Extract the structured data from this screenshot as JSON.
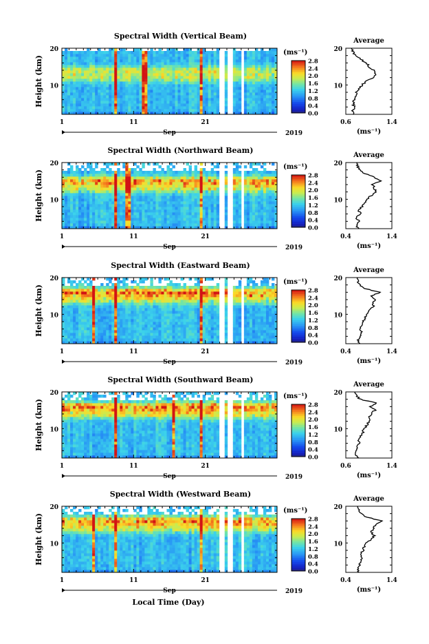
{
  "figure": {
    "xlabel": "Local Time (Day)",
    "month_label": "Sep",
    "year_label": "2019",
    "x_ticks": [
      "1",
      "11",
      "21"
    ],
    "colorbar_unit": "(ms⁻¹)",
    "colorbar_ticks": [
      "0.0",
      "0.4",
      "0.8",
      "1.2",
      "1.6",
      "2.0",
      "2.4",
      "2.8"
    ],
    "ylabel": "Height (km)",
    "y_ticks": [
      "10",
      "20"
    ],
    "avg_title": "Average",
    "avg_unit": "(ms⁻¹)"
  },
  "chart_data": [
    {
      "type": "heatmap",
      "title": "Spectral Width (Vertical Beam)",
      "ylabel": "Height (km)",
      "xlabel": "",
      "xlim": [
        1,
        31
      ],
      "ylim": [
        2,
        20
      ],
      "clim": [
        0.0,
        2.8
      ],
      "noise_top_km": 19.5,
      "bands": [
        {
          "h": 14,
          "v": 1.7
        },
        {
          "h": 12,
          "v": 1.6
        }
      ],
      "bright_days": [
        8.5,
        20.3,
        12.5
      ],
      "gaps": [
        23.3,
        24.4,
        26.2
      ],
      "profile": {
        "title": "Average",
        "xlabel": "(ms⁻¹)",
        "xlim": [
          0.6,
          1.4
        ],
        "xticks": [
          "0.6",
          "1.4"
        ],
        "heights": [
          2,
          3,
          4,
          5,
          6,
          7,
          8,
          9,
          10,
          11,
          12,
          13,
          14,
          15,
          16,
          17,
          18,
          19,
          20
        ],
        "values": [
          0.72,
          0.72,
          0.74,
          0.73,
          0.75,
          0.76,
          0.78,
          0.82,
          0.88,
          0.95,
          1.06,
          1.12,
          1.08,
          1.0,
          0.95,
          0.85,
          0.76,
          0.72,
          0.7
        ]
      }
    },
    {
      "type": "heatmap",
      "title": "Spectral Width (Northward Beam)",
      "ylabel": "Height (km)",
      "xlabel": "",
      "xlim": [
        1,
        31
      ],
      "ylim": [
        2,
        20
      ],
      "clim": [
        0.0,
        2.8
      ],
      "noise_top_km": 17.5,
      "bands": [
        {
          "h": 15,
          "v": 2.2
        },
        {
          "h": 13,
          "v": 1.7
        }
      ],
      "bright_days": [
        8.5,
        20.3,
        10.2
      ],
      "gaps": [
        23.3,
        24.4,
        26.2
      ],
      "profile": {
        "title": "Average",
        "xlabel": "(ms⁻¹)",
        "xlim": [
          0.4,
          1.4
        ],
        "xticks": [
          "0.4",
          "1.4"
        ],
        "heights": [
          2,
          3,
          4,
          5,
          6,
          7,
          8,
          9,
          10,
          11,
          12,
          13,
          14,
          15,
          16,
          17,
          18,
          19,
          20
        ],
        "values": [
          0.68,
          0.62,
          0.7,
          0.62,
          0.72,
          0.68,
          0.75,
          0.8,
          0.85,
          0.95,
          1.05,
          1.02,
          0.98,
          1.15,
          1.02,
          0.8,
          0.7,
          0.66,
          0.64
        ]
      }
    },
    {
      "type": "heatmap",
      "title": "Spectral Width (Eastward Beam)",
      "ylabel": "Height (km)",
      "xlabel": "",
      "xlim": [
        1,
        31
      ],
      "ylim": [
        2,
        20
      ],
      "clim": [
        0.0,
        2.8
      ],
      "noise_top_km": 17.5,
      "bands": [
        {
          "h": 16,
          "v": 2.4
        },
        {
          "h": 14,
          "v": 1.7
        }
      ],
      "bright_days": [
        8.5,
        20.3,
        5.4
      ],
      "gaps": [
        23.3,
        24.4,
        26.2
      ],
      "profile": {
        "title": "Average",
        "xlabel": "(ms⁻¹)",
        "xlim": [
          0.4,
          1.4
        ],
        "xticks": [
          "0.4",
          "1.4"
        ],
        "heights": [
          2,
          3,
          4,
          5,
          6,
          7,
          8,
          9,
          10,
          11,
          12,
          13,
          14,
          15,
          16,
          17,
          18,
          19,
          20
        ],
        "values": [
          0.7,
          0.65,
          0.72,
          0.75,
          0.72,
          0.74,
          0.78,
          0.82,
          0.85,
          0.9,
          1.0,
          0.98,
          1.05,
          0.95,
          1.15,
          0.8,
          0.7,
          0.66,
          0.65
        ]
      }
    },
    {
      "type": "heatmap",
      "title": "Spectral Width (Southward Beam)",
      "ylabel": "Height (km)",
      "xlabel": "",
      "xlim": [
        1,
        31
      ],
      "ylim": [
        2,
        20
      ],
      "clim": [
        0.0,
        2.8
      ],
      "noise_top_km": 18.0,
      "bands": [
        {
          "h": 16,
          "v": 2.3
        },
        {
          "h": 14,
          "v": 1.8
        }
      ],
      "bright_days": [
        8.5,
        20.3,
        16.5
      ],
      "gaps": [
        23.3,
        24.4,
        26.2
      ],
      "profile": {
        "title": "Average",
        "xlabel": "(ms⁻¹)",
        "xlim": [
          0.6,
          1.4
        ],
        "xticks": [
          "0.6",
          "1.4"
        ],
        "heights": [
          2,
          3,
          4,
          5,
          6,
          7,
          8,
          9,
          10,
          11,
          12,
          13,
          14,
          15,
          16,
          17,
          18,
          19,
          20
        ],
        "values": [
          0.82,
          0.78,
          0.8,
          0.8,
          0.82,
          0.84,
          0.86,
          0.9,
          0.92,
          0.96,
          1.02,
          1.0,
          1.05,
          1.1,
          1.02,
          1.12,
          0.85,
          0.78,
          0.76
        ]
      }
    },
    {
      "type": "heatmap",
      "title": "Spectral Width (Westward Beam)",
      "ylabel": "Height (km)",
      "xlabel": "Local Time (Day)",
      "xlim": [
        1,
        31
      ],
      "ylim": [
        2,
        20
      ],
      "clim": [
        0.0,
        2.8
      ],
      "noise_top_km": 17.5,
      "bands": [
        {
          "h": 16,
          "v": 2.3
        },
        {
          "h": 14,
          "v": 1.7
        }
      ],
      "bright_days": [
        8.5,
        20.3,
        5.4
      ],
      "gaps": [
        23.3,
        24.4,
        26.2
      ],
      "profile": {
        "title": "Average",
        "xlabel": "(ms⁻¹)",
        "xlim": [
          0.4,
          1.4
        ],
        "xticks": [
          "0.4",
          "1.4"
        ],
        "heights": [
          2,
          3,
          4,
          5,
          6,
          7,
          8,
          9,
          10,
          11,
          12,
          13,
          14,
          15,
          16,
          17,
          18,
          19,
          20
        ],
        "values": [
          0.68,
          0.66,
          0.7,
          0.72,
          0.74,
          0.72,
          0.78,
          0.8,
          0.85,
          0.95,
          1.02,
          0.95,
          1.0,
          1.05,
          1.2,
          0.85,
          0.72,
          0.68,
          0.66
        ]
      }
    }
  ]
}
